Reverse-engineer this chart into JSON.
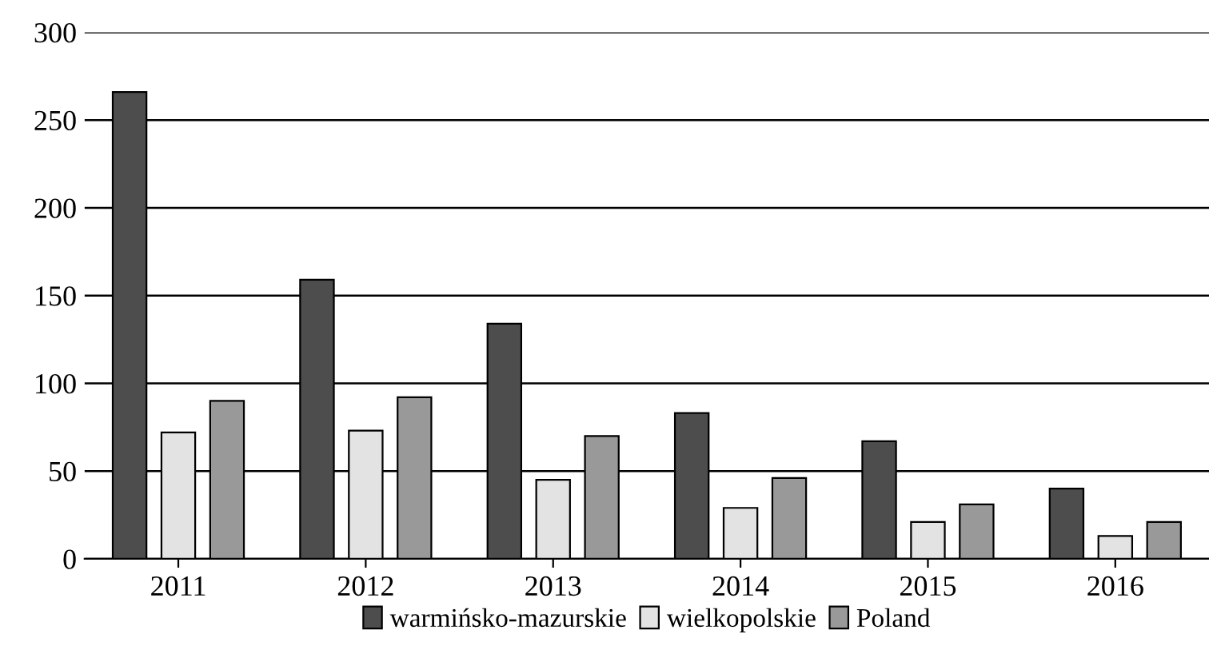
{
  "chart_data": {
    "type": "bar",
    "categories": [
      "2011",
      "2012",
      "2013",
      "2014",
      "2015",
      "2016"
    ],
    "series": [
      {
        "name": "warmińsko-mazurskie",
        "color": "#4d4d4d",
        "values": [
          266,
          159,
          134,
          83,
          67,
          40
        ]
      },
      {
        "name": "wielkopolskie",
        "color": "#e3e3e3",
        "values": [
          72,
          73,
          45,
          29,
          21,
          13
        ]
      },
      {
        "name": "Poland",
        "color": "#999999",
        "values": [
          90,
          92,
          70,
          46,
          31,
          21
        ]
      }
    ],
    "ylim": [
      0,
      300
    ],
    "yticks": [
      0,
      50,
      100,
      150,
      200,
      250,
      300
    ],
    "grid": "y",
    "legend": "bottom"
  }
}
